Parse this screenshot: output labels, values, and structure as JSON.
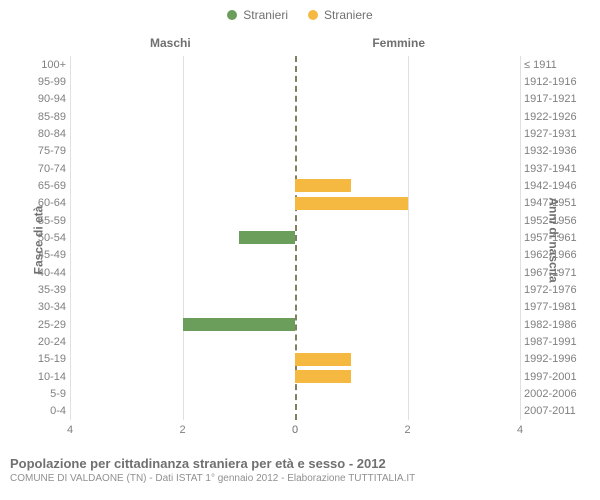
{
  "legend": [
    {
      "label": "Stranieri",
      "color": "#6a9e5a"
    },
    {
      "label": "Straniere",
      "color": "#f5b942"
    }
  ],
  "column_headers": {
    "left": "Maschi",
    "right": "Femmine"
  },
  "axis_labels": {
    "left": "Fasce di età",
    "right": "Anni di nascita"
  },
  "xlim": 4,
  "x_ticks": [
    4,
    2,
    0,
    0,
    2,
    4
  ],
  "categories": [
    {
      "age": "100+",
      "birth": "≤ 1911",
      "m": 0,
      "f": 0
    },
    {
      "age": "95-99",
      "birth": "1912-1916",
      "m": 0,
      "f": 0
    },
    {
      "age": "90-94",
      "birth": "1917-1921",
      "m": 0,
      "f": 0
    },
    {
      "age": "85-89",
      "birth": "1922-1926",
      "m": 0,
      "f": 0
    },
    {
      "age": "80-84",
      "birth": "1927-1931",
      "m": 0,
      "f": 0
    },
    {
      "age": "75-79",
      "birth": "1932-1936",
      "m": 0,
      "f": 0
    },
    {
      "age": "70-74",
      "birth": "1937-1941",
      "m": 0,
      "f": 0
    },
    {
      "age": "65-69",
      "birth": "1942-1946",
      "m": 0,
      "f": 1
    },
    {
      "age": "60-64",
      "birth": "1947-1951",
      "m": 0,
      "f": 2
    },
    {
      "age": "55-59",
      "birth": "1952-1956",
      "m": 0,
      "f": 0
    },
    {
      "age": "50-54",
      "birth": "1957-1961",
      "m": 1,
      "f": 0
    },
    {
      "age": "45-49",
      "birth": "1962-1966",
      "m": 0,
      "f": 0
    },
    {
      "age": "40-44",
      "birth": "1967-1971",
      "m": 0,
      "f": 0
    },
    {
      "age": "35-39",
      "birth": "1972-1976",
      "m": 0,
      "f": 0
    },
    {
      "age": "30-34",
      "birth": "1977-1981",
      "m": 0,
      "f": 0
    },
    {
      "age": "25-29",
      "birth": "1982-1986",
      "m": 2,
      "f": 0
    },
    {
      "age": "20-24",
      "birth": "1987-1991",
      "m": 0,
      "f": 0
    },
    {
      "age": "15-19",
      "birth": "1992-1996",
      "m": 0,
      "f": 1
    },
    {
      "age": "10-14",
      "birth": "1997-2001",
      "m": 0,
      "f": 1
    },
    {
      "age": "5-9",
      "birth": "2002-2006",
      "m": 0,
      "f": 0
    },
    {
      "age": "0-4",
      "birth": "2007-2011",
      "m": 0,
      "f": 0
    }
  ],
  "colors": {
    "male_bar": "#6a9e5a",
    "female_bar": "#f5b942",
    "grid": "#e0e0e0",
    "divider": "#808060"
  },
  "title": "Popolazione per cittadinanza straniera per età e sesso - 2012",
  "subtitle": "COMUNE DI VALDAONE (TN) - Dati ISTAT 1° gennaio 2012 - Elaborazione TUTTITALIA.IT"
}
